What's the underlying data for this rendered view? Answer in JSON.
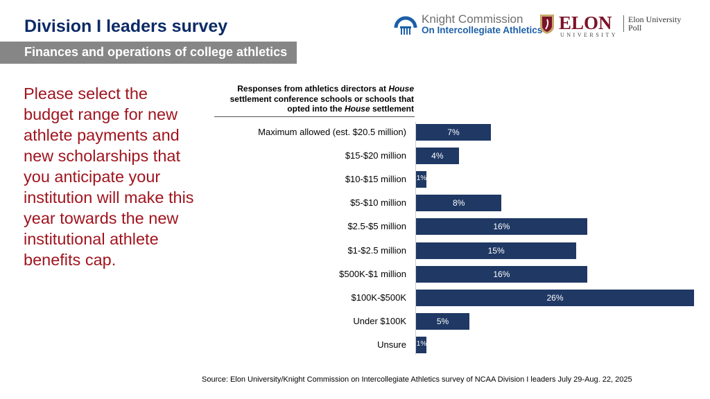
{
  "header": {
    "title": "Division I leaders survey",
    "section": "Finances and operations of college athletics"
  },
  "logos": {
    "knight_line1": "Knight Commission",
    "knight_line2": "On Intercollegiate Athletics",
    "elon": "ELON",
    "elon_sub": "UNIVERSITY",
    "poll_line1": "Elon University",
    "poll_line2": "Poll"
  },
  "question": "Please select the budget range for new athlete payments and new scholarships that you anticipate your institution will make this year towards the new institutional athlete benefits cap.",
  "source": "Source: Elon University/Knight Commission on Intercollegiate Athletics survey of NCAA Division I leaders July 29-Aug. 22, 2025",
  "chart_data": {
    "type": "bar",
    "orientation": "horizontal",
    "title": "Responses from athletics directors at House settlement conference schools or schools that opted into the House settlement",
    "categories": [
      "Maximum allowed (est. $20.5 million)",
      "$15-$20 million",
      "$10-$15 million",
      "$5-$10 million",
      "$2.5-$5 million",
      "$1-$2.5 million",
      "$500K-$1 million",
      "$100K-$500K",
      "Under $100K",
      "Unsure"
    ],
    "values": [
      7,
      4,
      1,
      8,
      16,
      15,
      16,
      26,
      5,
      1
    ],
    "labels": [
      "7%",
      "4%",
      "1%",
      "8%",
      "16%",
      "15%",
      "16%",
      "26%",
      "5%",
      "1%"
    ],
    "unit": "%",
    "bar_color": "#1f3864",
    "grid": false
  }
}
